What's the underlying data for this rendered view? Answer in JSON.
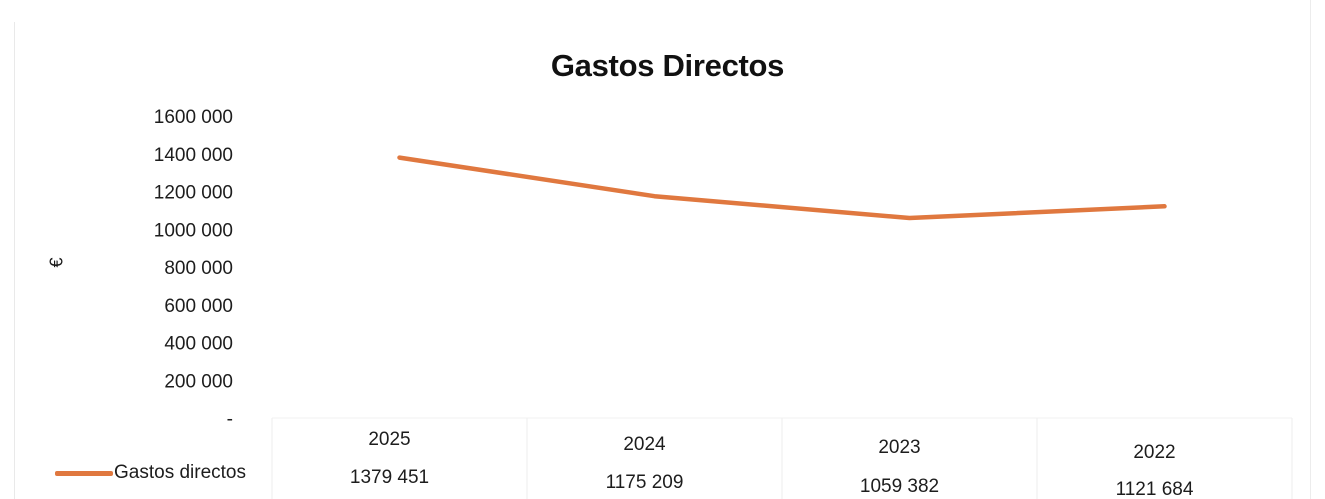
{
  "chart_data": {
    "type": "line",
    "title": "Gastos Directos",
    "ylabel": "€",
    "xlabel": "",
    "categories": [
      "2025",
      "2024",
      "2023",
      "2022"
    ],
    "series": [
      {
        "name": "Gastos directos",
        "values": [
          1379451,
          1175209,
          1059382,
          1121684
        ],
        "value_labels": [
          "1379 451",
          "1175 209",
          "1059 382",
          "1121 684"
        ],
        "color": "#e0783f"
      }
    ],
    "y_ticks": [
      {
        "value": 0,
        "label": "-"
      },
      {
        "value": 200000,
        "label": "200 000"
      },
      {
        "value": 400000,
        "label": "400 000"
      },
      {
        "value": 600000,
        "label": "600 000"
      },
      {
        "value": 800000,
        "label": "800 000"
      },
      {
        "value": 1000000,
        "label": "1000 000"
      },
      {
        "value": 1200000,
        "label": "1200 000"
      },
      {
        "value": 1400000,
        "label": "1400 000"
      },
      {
        "value": 1600000,
        "label": "1600 000"
      }
    ],
    "ylim": [
      0,
      1600000
    ],
    "grid": false,
    "legend_position": "bottom-left",
    "data_table": true
  }
}
